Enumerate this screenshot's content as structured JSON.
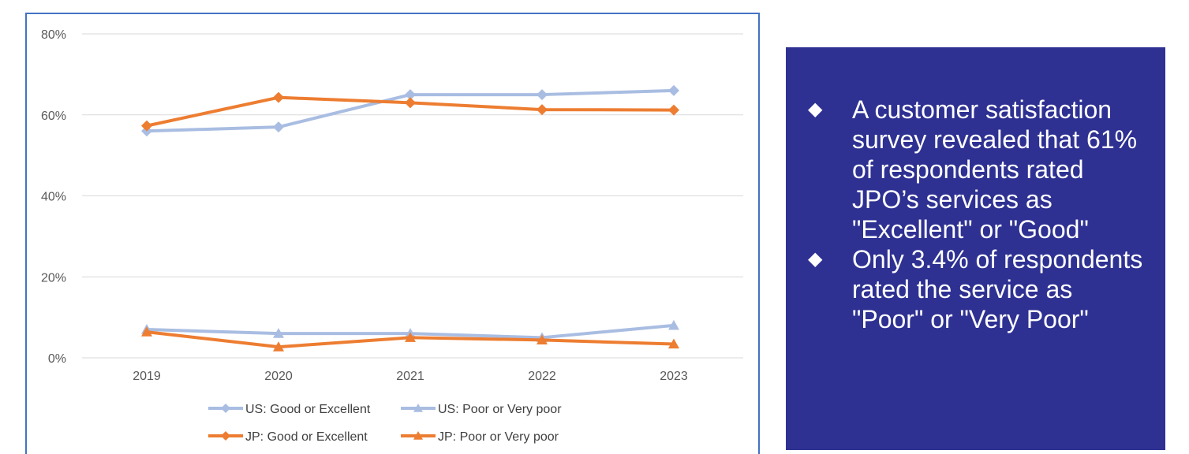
{
  "chart_data": {
    "type": "line",
    "x": [
      "2019",
      "2020",
      "2021",
      "2022",
      "2023"
    ],
    "ylim": [
      0,
      80
    ],
    "yticks": [
      "0%",
      "20%",
      "40%",
      "60%",
      "80%"
    ],
    "grid": true,
    "legend_position": "bottom",
    "series": [
      {
        "name": "US: Good or Excellent",
        "values": [
          56,
          57,
          65,
          65,
          66
        ],
        "color": "#a9bde2",
        "marker": "diamond"
      },
      {
        "name": "US: Poor or Very poor",
        "values": [
          7,
          6,
          6,
          5,
          8
        ],
        "color": "#a9bde2",
        "marker": "triangle"
      },
      {
        "name": "JP: Good or Excellent",
        "values": [
          57.3,
          64.3,
          63,
          61.3,
          61.2
        ],
        "color": "#ed7d31",
        "marker": "diamond"
      },
      {
        "name": "JP: Poor or Very poor",
        "values": [
          6.4,
          2.7,
          5,
          4.4,
          3.4
        ],
        "color": "#ed7d31",
        "marker": "triangle"
      }
    ]
  },
  "panel": {
    "background": "#2e3192",
    "bullets": [
      {
        "icon": "diamond-bullet-icon",
        "text": "A customer satisfaction survey revealed that 61% of respondents rated JPO’s services as \"Excellent\" or \"Good\""
      },
      {
        "icon": "diamond-bullet-icon",
        "text": "Only 3.4% of respondents rated the service as \"Poor\" or \"Very Poor\""
      }
    ]
  }
}
